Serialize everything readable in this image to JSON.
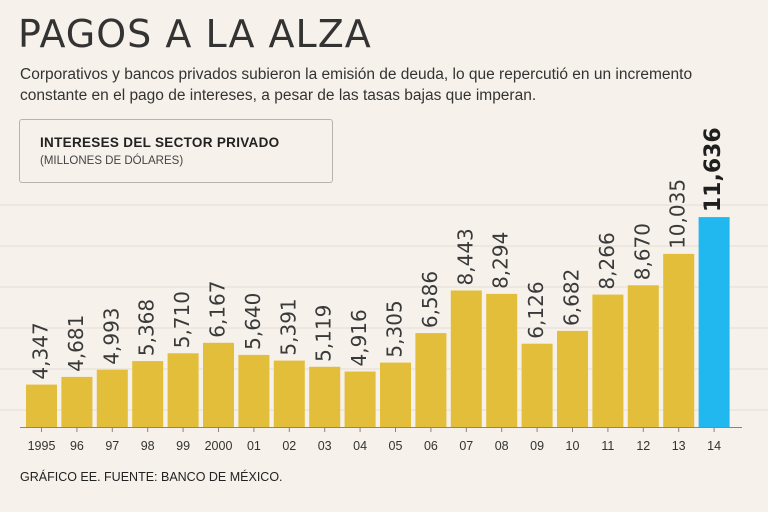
{
  "header": {
    "title": "PAGOS A LA ALZA",
    "subtitle": "Corporativos y bancos privados subieron la emisión de deuda, lo que repercutió en un incremento constante en el pago de intereses, a pesar de las tasas bajas que imperan."
  },
  "legend": {
    "title": "INTERESES DEL SECTOR PRIVADO",
    "units": "(MILLONES DE DÓLARES)"
  },
  "footer": {
    "source": "GRÁFICO EE. FUENTE: BANCO DE MÉXICO."
  },
  "colors": {
    "bar": "#e3be3a",
    "highlight": "#20b8ee",
    "grid": "#e4ddd4",
    "axis": "#8a857e"
  },
  "chart_data": {
    "type": "bar",
    "title": "INTERESES DEL SECTOR PRIVADO",
    "ylabel": "(MILLONES DE DÓLARES)",
    "xlabel": "",
    "categories": [
      "1995",
      "96",
      "97",
      "98",
      "99",
      "2000",
      "01",
      "02",
      "03",
      "04",
      "05",
      "06",
      "07",
      "08",
      "09",
      "10",
      "11",
      "12",
      "13",
      "14"
    ],
    "values": [
      4347,
      4681,
      4993,
      5368,
      5710,
      6167,
      5640,
      5391,
      5119,
      4916,
      5305,
      6586,
      8443,
      8294,
      6126,
      6682,
      8266,
      8670,
      10035,
      11636
    ],
    "value_labels": [
      "4,347",
      "4,681",
      "4,993",
      "5,368",
      "5,710",
      "6,167",
      "5,640",
      "5,391",
      "5,119",
      "4,916",
      "5,305",
      "6,586",
      "8,443",
      "8,294",
      "6,126",
      "6,682",
      "8,266",
      "8,670",
      "10,035",
      "11,636"
    ],
    "highlight_index": 19,
    "ylim": [
      2500,
      12000
    ],
    "grid": true
  }
}
